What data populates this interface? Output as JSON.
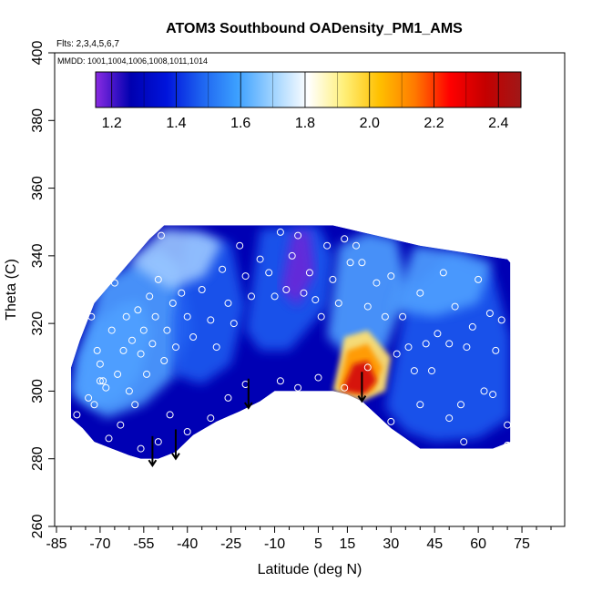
{
  "chart_data": {
    "type": "heatmap",
    "title": "ATOM3 Southbound OADensity_PM1_AMS",
    "subtitle_flights": "Flts: 2,3,4,5,6,7",
    "subtitle_dates": "MMDD: 1001,1004,1006,1008,1011,1014",
    "xlabel": "Latitude (deg N)",
    "ylabel": "Theta (C)",
    "xlim": [
      -85,
      85
    ],
    "ylim": [
      260,
      400
    ],
    "x_ticks": [
      -85,
      -70,
      -55,
      -40,
      -25,
      -10,
      5,
      15,
      30,
      45,
      60,
      75
    ],
    "x_tick_labels": [
      "-85",
      "-70",
      "-55",
      "-40",
      "-25",
      "-10",
      "5",
      "15",
      "30",
      "45",
      "60",
      "75"
    ],
    "x_minor_ticks": [
      -80,
      -75,
      -65,
      -60,
      -50,
      -45,
      -35,
      -30,
      -20,
      -15,
      -5,
      0,
      10,
      20,
      25,
      35,
      40,
      50,
      55,
      65,
      70,
      80,
      85
    ],
    "y_ticks": [
      260,
      280,
      300,
      320,
      340,
      360,
      380,
      400
    ],
    "y_tick_labels": [
      "260",
      "280",
      "300",
      "320",
      "340",
      "360",
      "380",
      "400"
    ],
    "colorbar": {
      "range": [
        1.15,
        2.47
      ],
      "ticks": [
        1.2,
        1.4,
        1.6,
        1.8,
        2.0,
        2.2,
        2.4
      ],
      "tick_labels": [
        "1.2",
        "1.4",
        "1.6",
        "1.8",
        "2.0",
        "2.2",
        "2.4"
      ],
      "colors": [
        "#8a2be2",
        "#0000b0",
        "#0014dc",
        "#1e64f0",
        "#3ca0ff",
        "#9fd3ff",
        "#ffffff",
        "#fff07a",
        "#ffc000",
        "#ff7a00",
        "#ff0000",
        "#c40000",
        "#a01818"
      ],
      "position": "top"
    },
    "field_colors": {
      "deep": "#0000b4",
      "mid": "#1e5af0",
      "light": "#50a0ff",
      "pale": "#9cc8ff",
      "purple": "#6a28d8",
      "hot_core": "#d41010",
      "hot_ring": "#ff9800",
      "hot_halo": "#ffe070"
    },
    "field_regions": [
      {
        "zone": "base",
        "color": "deep"
      },
      {
        "zone": "southern-patch",
        "color": "light"
      },
      {
        "zone": "southern-west",
        "color": "light"
      },
      {
        "zone": "mid-south",
        "color": "mid"
      },
      {
        "zone": "south-upper",
        "color": "pale"
      },
      {
        "zone": "central-upper",
        "color": "mid"
      },
      {
        "zone": "central-plume",
        "color": "purple"
      },
      {
        "zone": "north-east",
        "color": "mid"
      },
      {
        "zone": "north-west",
        "color": "light"
      },
      {
        "zone": "north-upper",
        "color": "light"
      },
      {
        "zone": "tropical-halo",
        "color": "hot_halo"
      },
      {
        "zone": "tropical-ring",
        "color": "hot_ring"
      },
      {
        "zone": "tropical-core",
        "color": "hot_core"
      }
    ],
    "sample_points": [
      [
        -75,
        327
      ],
      [
        -73,
        322
      ],
      [
        -71,
        312
      ],
      [
        -70,
        308
      ],
      [
        -69,
        303
      ],
      [
        -72,
        296
      ],
      [
        -68,
        301
      ],
      [
        -66,
        318
      ],
      [
        -65,
        332
      ],
      [
        -64,
        305
      ],
      [
        -62,
        312
      ],
      [
        -61,
        322
      ],
      [
        -60,
        300
      ],
      [
        -59,
        315
      ],
      [
        -58,
        296
      ],
      [
        -57,
        324
      ],
      [
        -56,
        311
      ],
      [
        -55,
        318
      ],
      [
        -54,
        305
      ],
      [
        -53,
        328
      ],
      [
        -52,
        314
      ],
      [
        -51,
        322
      ],
      [
        -50,
        333
      ],
      [
        -49,
        346
      ],
      [
        -48,
        309
      ],
      [
        -47,
        318
      ],
      [
        -45,
        326
      ],
      [
        -44,
        313
      ],
      [
        -42,
        329
      ],
      [
        -40,
        322
      ],
      [
        -38,
        316
      ],
      [
        -35,
        330
      ],
      [
        -32,
        321
      ],
      [
        -30,
        313
      ],
      [
        -28,
        336
      ],
      [
        -26,
        326
      ],
      [
        -24,
        320
      ],
      [
        -22,
        343
      ],
      [
        -20,
        334
      ],
      [
        -18,
        328
      ],
      [
        -15,
        339
      ],
      [
        -12,
        335
      ],
      [
        -10,
        328
      ],
      [
        -8,
        347
      ],
      [
        -6,
        330
      ],
      [
        -4,
        340
      ],
      [
        -2,
        346
      ],
      [
        0,
        329
      ],
      [
        2,
        335
      ],
      [
        4,
        327
      ],
      [
        6,
        322
      ],
      [
        8,
        343
      ],
      [
        10,
        333
      ],
      [
        12,
        326
      ],
      [
        14,
        345
      ],
      [
        16,
        338
      ],
      [
        18,
        343
      ],
      [
        20,
        338
      ],
      [
        22,
        325
      ],
      [
        25,
        332
      ],
      [
        28,
        322
      ],
      [
        30,
        334
      ],
      [
        32,
        311
      ],
      [
        34,
        322
      ],
      [
        36,
        313
      ],
      [
        38,
        306
      ],
      [
        40,
        329
      ],
      [
        42,
        314
      ],
      [
        44,
        306
      ],
      [
        46,
        317
      ],
      [
        48,
        335
      ],
      [
        50,
        314
      ],
      [
        52,
        325
      ],
      [
        54,
        296
      ],
      [
        56,
        313
      ],
      [
        58,
        319
      ],
      [
        60,
        333
      ],
      [
        62,
        300
      ],
      [
        64,
        323
      ],
      [
        66,
        312
      ],
      [
        68,
        321
      ],
      [
        70,
        290
      ],
      [
        -78,
        293
      ],
      [
        -74,
        298
      ],
      [
        -70,
        303
      ],
      [
        -67,
        286
      ],
      [
        -63,
        290
      ],
      [
        -56,
        283
      ],
      [
        -50,
        285
      ],
      [
        -46,
        293
      ],
      [
        -40,
        288
      ],
      [
        -32,
        292
      ],
      [
        -26,
        298
      ],
      [
        -20,
        302
      ],
      [
        -8,
        303
      ],
      [
        -2,
        301
      ],
      [
        5,
        304
      ],
      [
        14,
        301
      ],
      [
        22,
        307
      ],
      [
        30,
        291
      ],
      [
        40,
        296
      ],
      [
        50,
        292
      ],
      [
        55,
        285
      ],
      [
        65,
        299
      ],
      [
        70,
        284
      ]
    ],
    "annotations": [
      {
        "type": "arrow",
        "x": -52,
        "y_from": 284,
        "y_to": 278
      },
      {
        "type": "arrow",
        "x": -44,
        "y_from": 286,
        "y_to": 280
      },
      {
        "type": "arrow",
        "x": -19,
        "y_from": 301,
        "y_to": 295
      },
      {
        "type": "arrow",
        "x": 20,
        "y_from": 303,
        "y_to": 297
      }
    ]
  }
}
